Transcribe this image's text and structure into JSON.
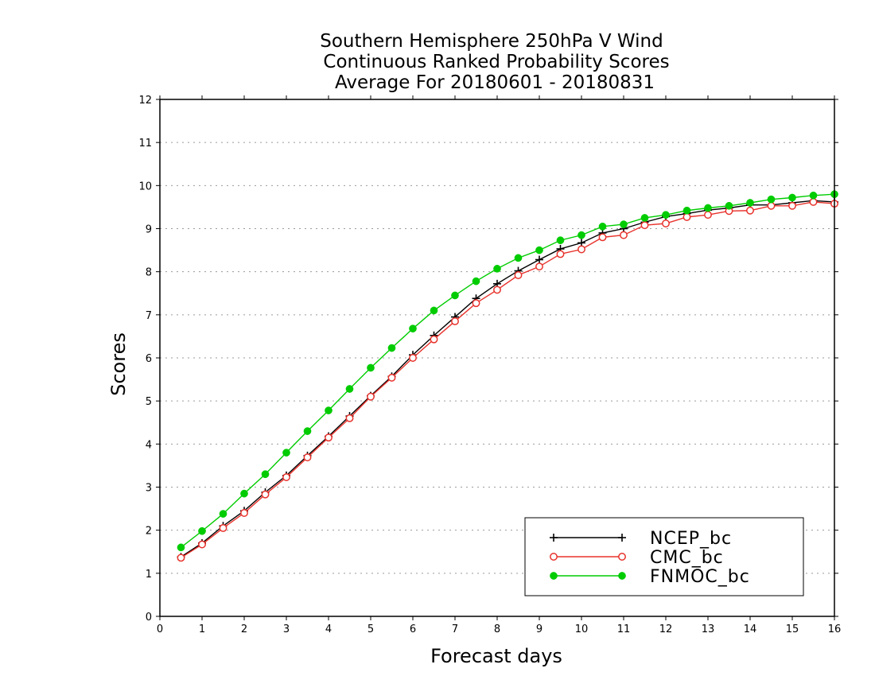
{
  "chart_data": {
    "type": "line",
    "title": [
      "Southern Hemisphere 250hPa V Wind",
      "Continuous Ranked Probability Scores",
      "Average For 20180601 - 20180831"
    ],
    "xlabel": "Forecast days",
    "ylabel": "Scores",
    "xlim": [
      0,
      16
    ],
    "ylim": [
      0,
      12
    ],
    "xticks": [
      "0",
      "1",
      "2",
      "3",
      "4",
      "5",
      "6",
      "7",
      "8",
      "9",
      "10",
      "11",
      "12",
      "13",
      "14",
      "15",
      "16"
    ],
    "yticks": [
      "0",
      "1",
      "2",
      "3",
      "4",
      "5",
      "6",
      "7",
      "8",
      "9",
      "10",
      "11",
      "12"
    ],
    "grid": "horizontal dotted",
    "legend_position": "bottom-right",
    "x": [
      0.5,
      1,
      1.5,
      2,
      2.5,
      3,
      3.5,
      4,
      4.5,
      5,
      5.5,
      6,
      6.5,
      7,
      7.5,
      8,
      8.5,
      9,
      9.5,
      10,
      10.5,
      11,
      11.5,
      12,
      12.5,
      13,
      13.5,
      14,
      14.5,
      15,
      15.5,
      16
    ],
    "series": [
      {
        "name": "NCEP_bc",
        "color": "#000000",
        "marker": "plus",
        "values": [
          1.38,
          1.7,
          2.1,
          2.45,
          2.88,
          3.27,
          3.73,
          4.18,
          4.65,
          5.12,
          5.57,
          6.07,
          6.52,
          6.95,
          7.38,
          7.72,
          8.02,
          8.28,
          8.53,
          8.67,
          8.9,
          9.0,
          9.15,
          9.28,
          9.35,
          9.43,
          9.48,
          9.55,
          9.55,
          9.6,
          9.65,
          9.62
        ]
      },
      {
        "name": "CMC_bc",
        "color": "#e8322c",
        "marker": "open-circle",
        "values": [
          1.36,
          1.67,
          2.05,
          2.4,
          2.83,
          3.23,
          3.69,
          4.15,
          4.6,
          5.1,
          5.54,
          6.0,
          6.43,
          6.85,
          7.27,
          7.58,
          7.92,
          8.12,
          8.41,
          8.52,
          8.8,
          8.85,
          9.08,
          9.12,
          9.27,
          9.32,
          9.41,
          9.42,
          9.53,
          9.53,
          9.62,
          9.58
        ]
      },
      {
        "name": "FNMOC_bc",
        "color": "#00cc00",
        "marker": "filled-circle",
        "values": [
          1.6,
          1.98,
          2.38,
          2.85,
          3.3,
          3.8,
          4.3,
          4.78,
          5.28,
          5.77,
          6.23,
          6.68,
          7.1,
          7.45,
          7.78,
          8.07,
          8.32,
          8.5,
          8.73,
          8.85,
          9.05,
          9.1,
          9.25,
          9.32,
          9.42,
          9.48,
          9.53,
          9.6,
          9.68,
          9.72,
          9.77,
          9.8
        ]
      }
    ]
  }
}
